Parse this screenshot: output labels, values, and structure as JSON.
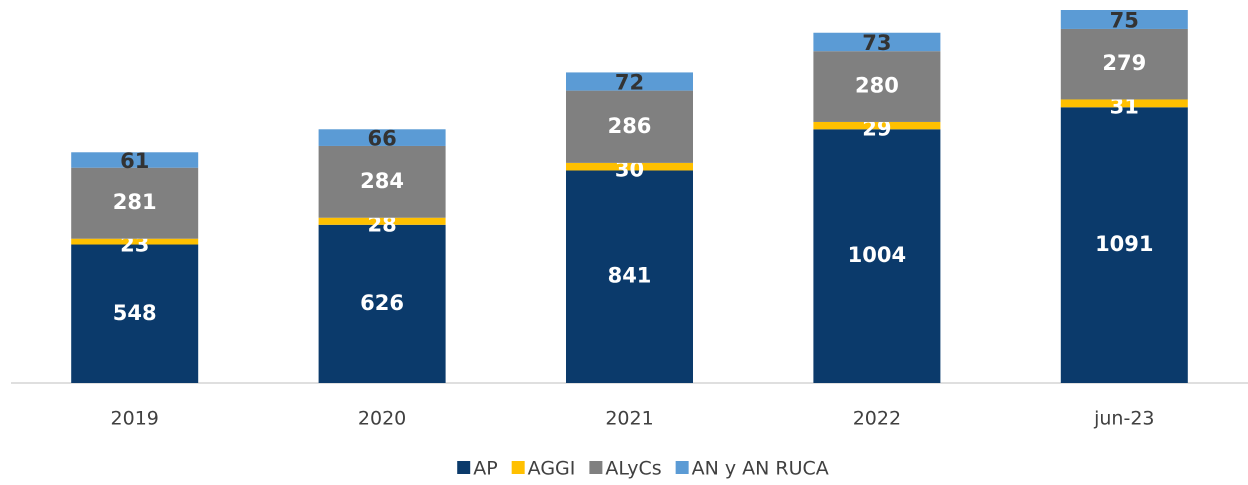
{
  "chart_data": {
    "type": "stacked_bar",
    "categories": [
      "2019",
      "2020",
      "2021",
      "2022",
      "jun-23"
    ],
    "series": [
      {
        "name": "AP",
        "color": "#0b3a6b",
        "values": [
          548,
          626,
          841,
          1004,
          1091
        ]
      },
      {
        "name": "AGGI",
        "color": "#ffc000",
        "values": [
          23,
          28,
          30,
          29,
          31
        ]
      },
      {
        "name": "ALyCs",
        "color": "#808080",
        "values": [
          281,
          284,
          286,
          280,
          279
        ]
      },
      {
        "name": "AN y AN RUCA",
        "color": "#5b9bd5",
        "values": [
          61,
          66,
          72,
          73,
          75
        ]
      }
    ]
  }
}
